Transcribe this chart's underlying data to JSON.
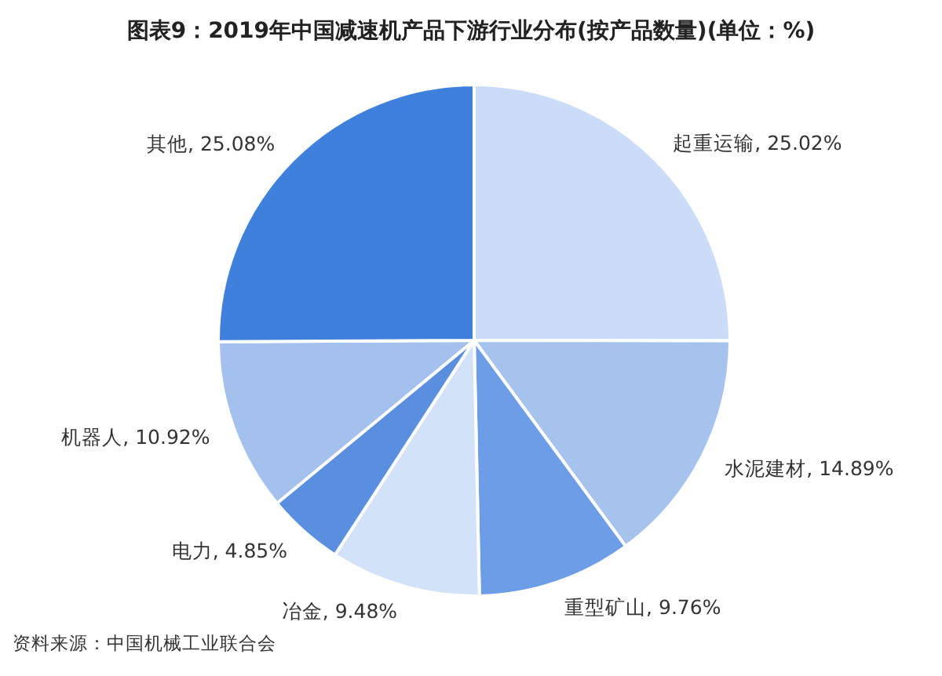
{
  "chart_data": {
    "type": "pie",
    "title": "图表9：2019年中国减速机产品下游行业分布(按产品数量)(单位：%)",
    "categories": [
      "起重运输",
      "水泥建材",
      "重型矿山",
      "冶金",
      "电力",
      "机器人",
      "其他"
    ],
    "values": [
      25.02,
      14.89,
      9.76,
      9.48,
      4.85,
      10.92,
      25.08
    ],
    "value_labels": [
      "25.02%",
      "14.89%",
      "9.76%",
      "9.48%",
      "4.85%",
      "10.92%",
      "25.08%"
    ],
    "colors": [
      "#cadcf7",
      "#a6c3ee",
      "#6d9de6",
      "#d2e2f8",
      "#5a8fe0",
      "#a4c1ee",
      "#3f80dd"
    ],
    "annotations": [
      "资料来源：中国机械工业联合会"
    ]
  }
}
